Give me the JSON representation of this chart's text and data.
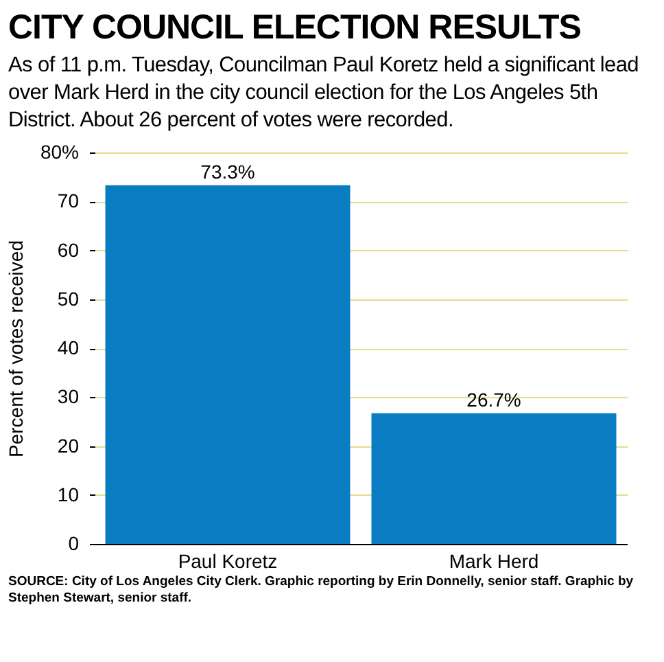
{
  "chart_data": {
    "type": "bar",
    "title": "CITY COUNCIL ELECTION RESULTS",
    "subtitle": "As of 11 p.m. Tuesday, Councilman Paul Koretz held a significant lead over Mark Herd in the city council election for the Los Angeles 5th District. About 26 percent of votes were recorded.",
    "ylabel": "Percent of votes received",
    "categories": [
      "Paul Koretz",
      "Mark Herd"
    ],
    "values": [
      73.3,
      26.7
    ],
    "value_labels": [
      "73.3%",
      "26.7%"
    ],
    "color": "#0a7cc1",
    "ylim": [
      0,
      80
    ],
    "yticks": [
      0,
      10,
      20,
      30,
      40,
      50,
      60,
      70,
      {
        "value": 80,
        "label": "80%"
      }
    ],
    "grid": "y",
    "annotations": [
      "SOURCE: City of Los Angeles City Clerk.  Graphic reporting by Erin Donnelly, senior staff.  Graphic by Stephen Stewart, senior staff."
    ]
  }
}
